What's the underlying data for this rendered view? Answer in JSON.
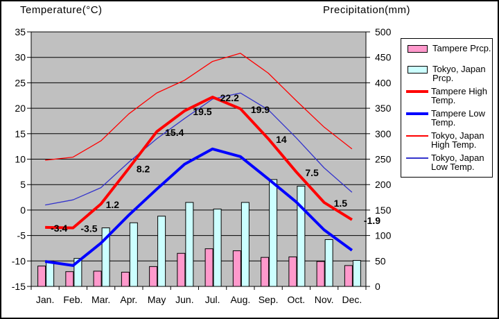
{
  "titles": {
    "temperature": "Temperature(°C)",
    "precipitation": "Precipitation(mm)"
  },
  "colors": {
    "plot_bg": "#c0c0c0",
    "grid": "#000000",
    "frame_border": "#000000",
    "tampere_prcp": "#ff99cc",
    "tokyo_prcp": "#ccffff",
    "tampere_high": "#ff0000",
    "tampere_low": "#0000ff",
    "tokyo_high": "#ff0000",
    "tokyo_low": "#3333cc"
  },
  "chart_data": {
    "type": "combo",
    "categories": [
      "Jan.",
      "Feb.",
      "Mar.",
      "Apr.",
      "May",
      "Jun.",
      "Jul.",
      "Aug.",
      "Sep.",
      "Oct.",
      "Nov.",
      "Dec."
    ],
    "axes": {
      "temp": {
        "side": "left",
        "title": "Temperature(°C)",
        "min": -15,
        "max": 35,
        "ticks": [
          35,
          30,
          25,
          20,
          15,
          10,
          5,
          0,
          -5,
          -10,
          -15
        ]
      },
      "precip": {
        "side": "right",
        "title": "Precipitation(mm)",
        "min": 0,
        "max": 500,
        "ticks": [
          500,
          450,
          400,
          350,
          300,
          250,
          200,
          150,
          100,
          50,
          0
        ]
      }
    },
    "grid": true,
    "series": [
      {
        "name": "Tampere Prcp.",
        "type": "bar",
        "axis": "precip",
        "color": "#ff99cc",
        "values": [
          40,
          29,
          30,
          28,
          39,
          65,
          74,
          70,
          57,
          58,
          49,
          41
        ]
      },
      {
        "name": "Tokyo, Japan Prcp.",
        "type": "bar",
        "axis": "precip",
        "color": "#ccffff",
        "values": [
          50,
          55,
          115,
          125,
          138,
          165,
          152,
          165,
          210,
          197,
          92,
          51
        ]
      },
      {
        "name": "Tampere High Temp.",
        "type": "line",
        "weight": "thick",
        "axis": "temp",
        "color": "#ff0000",
        "values": [
          -3.4,
          -3.5,
          1.2,
          8.2,
          15.4,
          19.5,
          22.2,
          19.9,
          14,
          7.5,
          1.5,
          -1.9
        ],
        "point_labels": [
          "-3.4",
          "-3.5",
          "1.2",
          "8.2",
          "15.4",
          "19.5",
          "22.2",
          "19.9",
          "14",
          "7.5",
          "1.5",
          "-1.9"
        ]
      },
      {
        "name": "Tampere Low Temp.",
        "type": "line",
        "weight": "thick",
        "axis": "temp",
        "color": "#0000ff",
        "values": [
          -10.1,
          -10.9,
          -6.5,
          -1,
          4.1,
          9,
          12,
          10.5,
          6.1,
          1.6,
          -3.9,
          -7.9
        ]
      },
      {
        "name": "Tokyo, Japan High Temp.",
        "type": "line",
        "weight": "thin",
        "axis": "temp",
        "color": "#ff0000",
        "values": [
          9.8,
          10.4,
          13.6,
          18.9,
          23,
          25.5,
          29.2,
          30.8,
          26.9,
          21.5,
          16.3,
          12
        ]
      },
      {
        "name": "Tokyo, Japan Low Temp.",
        "type": "line",
        "weight": "thin",
        "axis": "temp",
        "color": "#3333cc",
        "values": [
          1,
          2,
          4.4,
          9.4,
          14,
          18,
          21.8,
          23,
          19.7,
          14.2,
          8.3,
          3.5
        ]
      }
    ],
    "legend_position": "right"
  },
  "legend": {
    "items": [
      {
        "name": "tampere-prcp",
        "swatch": "bar",
        "color": "#ff99cc",
        "label": "Tampere Prcp."
      },
      {
        "name": "tokyo-prcp",
        "swatch": "bar",
        "color": "#ccffff",
        "label": "Tokyo, Japan Prcp."
      },
      {
        "name": "tampere-high",
        "swatch": "line-thick",
        "color": "#ff0000",
        "label": "Tampere High Temp."
      },
      {
        "name": "tampere-low",
        "swatch": "line-thick",
        "color": "#0000ff",
        "label": "Tampere Low Temp."
      },
      {
        "name": "tokyo-high",
        "swatch": "line-thin",
        "color": "#ff0000",
        "label": "Tokyo, Japan High Temp."
      },
      {
        "name": "tokyo-low",
        "swatch": "line-thin",
        "color": "#3333cc",
        "label": "Tokyo, Japan Low Temp."
      }
    ]
  }
}
